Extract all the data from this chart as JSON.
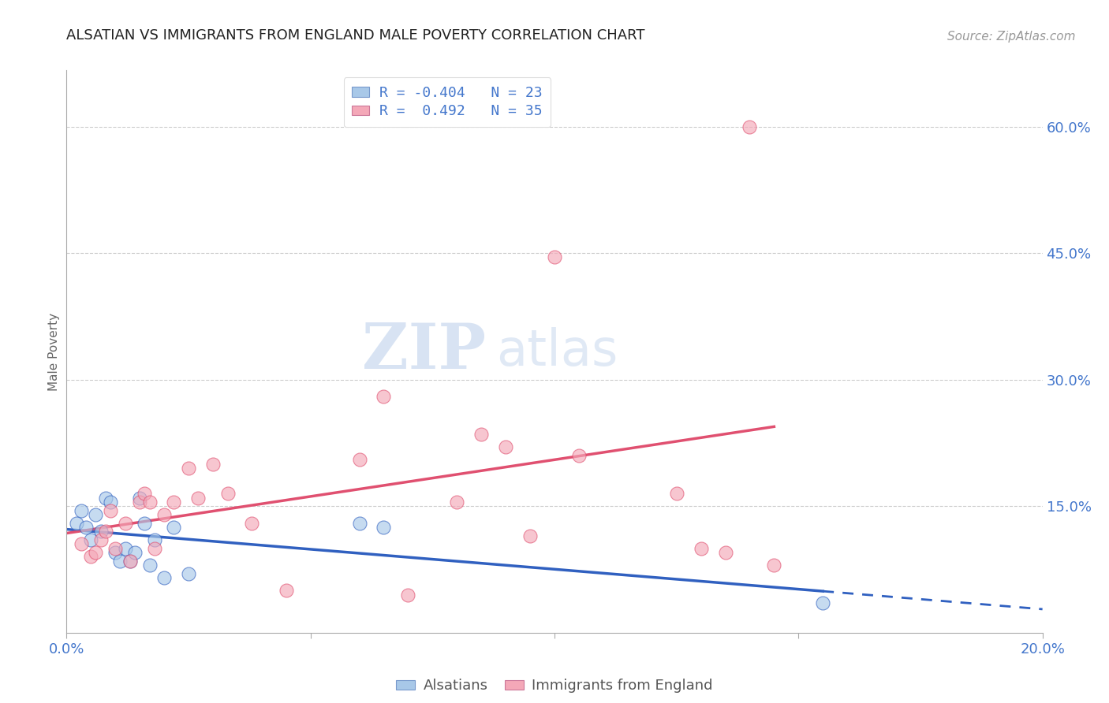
{
  "title": "ALSATIAN VS IMMIGRANTS FROM ENGLAND MALE POVERTY CORRELATION CHART",
  "source": "Source: ZipAtlas.com",
  "ylabel": "Male Poverty",
  "xlim": [
    0.0,
    0.2
  ],
  "ylim": [
    0.0,
    0.6667
  ],
  "yticks": [
    0.15,
    0.3,
    0.45,
    0.6
  ],
  "ytick_labels": [
    "15.0%",
    "30.0%",
    "45.0%",
    "60.0%"
  ],
  "xticks": [
    0.0,
    0.05,
    0.1,
    0.15,
    0.2
  ],
  "xtick_labels": [
    "0.0%",
    "",
    "",
    "",
    "20.0%"
  ],
  "blue_color": "#A8C8E8",
  "pink_color": "#F4A8B8",
  "blue_line_color": "#3060C0",
  "pink_line_color": "#E05070",
  "blue_r": -0.404,
  "pink_r": 0.492,
  "blue_n": 23,
  "pink_n": 35,
  "watermark_zip": "ZIP",
  "watermark_atlas": "atlas",
  "alsatian_x": [
    0.002,
    0.003,
    0.004,
    0.005,
    0.006,
    0.007,
    0.008,
    0.009,
    0.01,
    0.011,
    0.012,
    0.013,
    0.014,
    0.015,
    0.016,
    0.017,
    0.018,
    0.02,
    0.022,
    0.025,
    0.06,
    0.065,
    0.155
  ],
  "alsatian_y": [
    0.13,
    0.145,
    0.125,
    0.11,
    0.14,
    0.12,
    0.16,
    0.155,
    0.095,
    0.085,
    0.1,
    0.085,
    0.095,
    0.16,
    0.13,
    0.08,
    0.11,
    0.065,
    0.125,
    0.07,
    0.13,
    0.125,
    0.035
  ],
  "england_x": [
    0.003,
    0.005,
    0.006,
    0.007,
    0.008,
    0.009,
    0.01,
    0.012,
    0.013,
    0.015,
    0.016,
    0.017,
    0.018,
    0.02,
    0.022,
    0.025,
    0.027,
    0.03,
    0.033,
    0.038,
    0.045,
    0.06,
    0.065,
    0.07,
    0.08,
    0.085,
    0.09,
    0.095,
    0.1,
    0.105,
    0.125,
    0.13,
    0.135,
    0.14,
    0.145
  ],
  "england_y": [
    0.105,
    0.09,
    0.095,
    0.11,
    0.12,
    0.145,
    0.1,
    0.13,
    0.085,
    0.155,
    0.165,
    0.155,
    0.1,
    0.14,
    0.155,
    0.195,
    0.16,
    0.2,
    0.165,
    0.13,
    0.05,
    0.205,
    0.28,
    0.045,
    0.155,
    0.235,
    0.22,
    0.115,
    0.445,
    0.21,
    0.165,
    0.1,
    0.095,
    0.6,
    0.08
  ]
}
